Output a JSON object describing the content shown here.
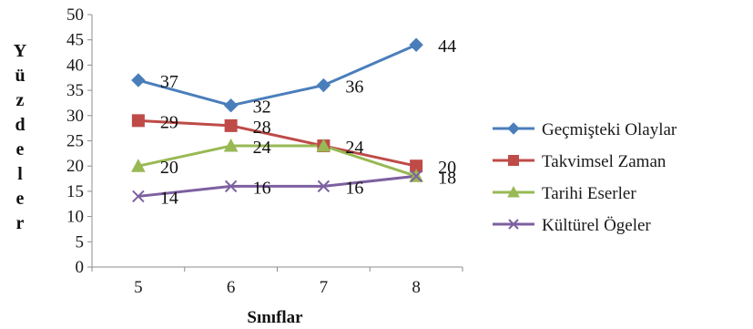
{
  "chart_data": {
    "type": "line",
    "xlabel": "Sınıflar",
    "ylabel": "Yüzdeler",
    "categories": [
      "5",
      "6",
      "7",
      "8"
    ],
    "ylim": [
      0,
      50
    ],
    "yticks": [
      "0",
      "5",
      "10",
      "15",
      "20",
      "25",
      "30",
      "35",
      "40",
      "45",
      "50"
    ],
    "grid": false,
    "legend_position": "right",
    "series": [
      {
        "name": "Geçmişteki Olaylar",
        "values": [
          37,
          32,
          36,
          44
        ],
        "labels": [
          "37",
          "32",
          "36",
          "44"
        ],
        "color": "#4a7ebb",
        "marker": "diamond"
      },
      {
        "name": "Takvimsel Zaman",
        "values": [
          29,
          28,
          24,
          20
        ],
        "labels": [
          "29",
          "28",
          "24",
          "20"
        ],
        "color": "#be4b48",
        "marker": "square"
      },
      {
        "name": "Tarihi Eserler",
        "values": [
          20,
          24,
          24,
          18
        ],
        "labels": [
          "20",
          "24",
          "",
          "18"
        ],
        "color": "#98b954",
        "marker": "triangle"
      },
      {
        "name": "Kültürel Ögeler",
        "values": [
          14,
          16,
          16,
          18
        ],
        "labels": [
          "14",
          "16",
          "16",
          ""
        ],
        "color": "#7d60a0",
        "marker": "x"
      }
    ]
  }
}
